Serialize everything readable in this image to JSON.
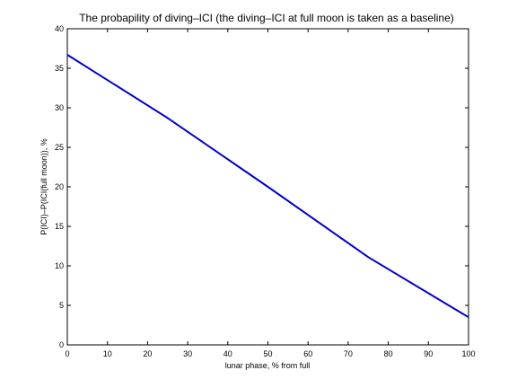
{
  "chart_data": {
    "type": "line",
    "title": "The probapility of diving–ICI (the diving–ICI at full moon is taken as a baseline)",
    "xlabel": "lunar phase, % from full",
    "ylabel": "P(ICI)–P(ICI(full moon)), %",
    "xlim": [
      0,
      100
    ],
    "ylim": [
      0,
      40
    ],
    "xticks": [
      "0",
      "10",
      "20",
      "30",
      "40",
      "50",
      "60",
      "70",
      "80",
      "90",
      "100"
    ],
    "yticks": [
      "0",
      "5",
      "10",
      "15",
      "20",
      "25",
      "30",
      "35",
      "40"
    ],
    "grid": false,
    "series": [
      {
        "color": "#0000cc",
        "x": [
          0,
          25,
          50,
          75,
          100
        ],
        "y": [
          36.7,
          28.7,
          20.0,
          11.1,
          3.5
        ]
      }
    ]
  }
}
